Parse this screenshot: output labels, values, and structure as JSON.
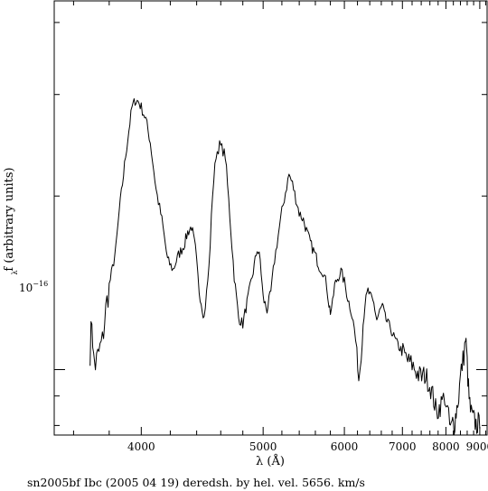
{
  "chart_data": {
    "type": "line",
    "title": "",
    "caption": "sn2005bf Ibc (2005 04 19) deredsh. by hel. vel.  5656. km/s",
    "xlabel": "λ (Å)",
    "ylabel": "f (arbitrary units)",
    "ylabel_subscript": "λ",
    "y_tick_base": "10",
    "y_tick_exponent": "−16",
    "x_scale": "reciprocal",
    "y_scale": "log",
    "xlim": [
      3500,
      9250
    ],
    "ylim": [
      7.7e-17,
      4.36e-16
    ],
    "x_ticks": [
      4000,
      5000,
      6000,
      7000,
      8000,
      9000
    ],
    "x_tick_labels": [
      "4000",
      "5000",
      "6000",
      "7000",
      "8000",
      "9000"
    ],
    "y_major_tick": 1e-16,
    "grid": false,
    "legend": "none",
    "series": [
      {
        "x": [
          3690,
          3700,
          3710,
          3720,
          3740,
          3760,
          3780,
          3800,
          3820,
          3840,
          3860,
          3880,
          3900,
          3920,
          3940,
          3960,
          3980,
          4000,
          4030,
          4060,
          4100,
          4140,
          4180,
          4220,
          4260,
          4300,
          4330,
          4360,
          4390,
          4420,
          4460,
          4500,
          4530,
          4560,
          4590,
          4610,
          4640,
          4680,
          4720,
          4760,
          4800,
          4830,
          4860,
          4900,
          4940,
          4970,
          5000,
          5040,
          5080,
          5120,
          5160,
          5200,
          5240,
          5280,
          5320,
          5360,
          5400,
          5450,
          5500,
          5550,
          5600,
          5650,
          5700,
          5750,
          5780,
          5800,
          5830,
          5860,
          5900,
          5950,
          6000,
          6050,
          6100,
          6150,
          6190,
          6220,
          6260,
          6290,
          6320,
          6370,
          6420,
          6470,
          6520,
          6570,
          6620,
          6670,
          6720,
          6770,
          6830,
          6890,
          6950,
          7010,
          7070,
          7130,
          7200,
          7270,
          7340,
          7410,
          7480,
          7550,
          7620,
          7690,
          7760,
          7830,
          7900,
          7970,
          8040,
          8100,
          8140,
          8180,
          8220,
          8260,
          8300,
          8350,
          8400,
          8450,
          8500,
          8550,
          8580,
          8620,
          8660,
          8700,
          8750,
          8800,
          8850,
          8900,
          8950,
          9000
        ],
        "y": [
          1.08,
          1.23,
          1.04,
          1.02,
          1.07,
          1.12,
          1.27,
          1.4,
          1.5,
          1.62,
          1.88,
          2.1,
          2.35,
          2.6,
          2.85,
          2.93,
          2.92,
          2.85,
          2.72,
          2.48,
          2.05,
          1.82,
          1.55,
          1.49,
          1.58,
          1.64,
          1.73,
          1.77,
          1.62,
          1.37,
          1.23,
          1.5,
          2.02,
          2.36,
          2.45,
          2.42,
          2.35,
          1.85,
          1.45,
          1.23,
          1.2,
          1.28,
          1.36,
          1.48,
          1.62,
          1.55,
          1.33,
          1.27,
          1.36,
          1.55,
          1.71,
          1.88,
          2.03,
          2.18,
          2.1,
          1.98,
          1.87,
          1.82,
          1.72,
          1.64,
          1.58,
          1.51,
          1.48,
          1.4,
          1.3,
          1.26,
          1.3,
          1.4,
          1.44,
          1.48,
          1.42,
          1.33,
          1.27,
          1.18,
          1.07,
          0.96,
          1.06,
          1.2,
          1.3,
          1.37,
          1.33,
          1.3,
          1.22,
          1.26,
          1.29,
          1.23,
          1.2,
          1.18,
          1.14,
          1.11,
          1.09,
          1.07,
          1.05,
          1.03,
          1.02,
          1.0,
          0.98,
          0.97,
          0.98,
          0.96,
          0.93,
          0.89,
          0.84,
          0.86,
          0.88,
          0.9,
          0.85,
          0.8,
          0.79,
          0.81,
          0.8,
          0.83,
          0.86,
          0.9,
          0.97,
          1.02,
          1.06,
          1.13,
          1.08,
          0.97,
          0.89,
          0.85,
          0.83,
          0.82,
          0.81,
          0.8,
          0.81,
          0.79
        ]
      }
    ]
  }
}
